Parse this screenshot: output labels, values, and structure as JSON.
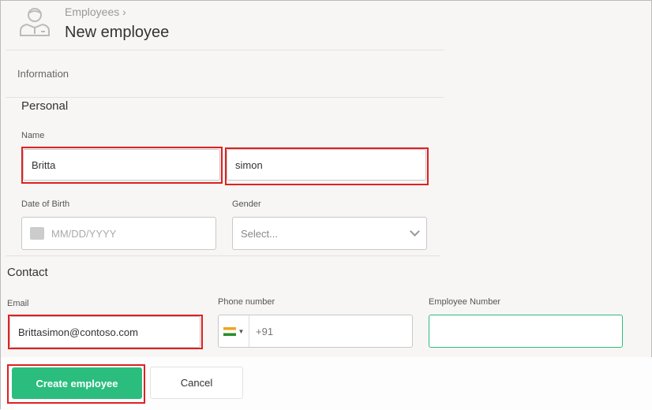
{
  "header": {
    "breadcrumb": "Employees",
    "breadcrumb_chevron": "›",
    "title": "New employee",
    "icon": "employee-avatar-icon"
  },
  "tab": "Information",
  "personal": {
    "heading": "Personal",
    "name_label": "Name",
    "first_name": "Britta",
    "last_name": "simon",
    "dob_label": "Date of Birth",
    "dob_placeholder": "MM/DD/YYYY",
    "gender_label": "Gender",
    "gender_value": "Select..."
  },
  "contact": {
    "heading": "Contact",
    "email_label": "Email",
    "email": "Brittasimon@contoso.com",
    "phone_label": "Phone number",
    "phone_prefix": "+91",
    "phone_country": "India",
    "employee_number_label": "Employee Number",
    "employee_number": ""
  },
  "actions": {
    "create": "Create employee",
    "cancel": "Cancel"
  },
  "colors": {
    "accent": "#2bbd7e",
    "highlight": "#e02020"
  }
}
